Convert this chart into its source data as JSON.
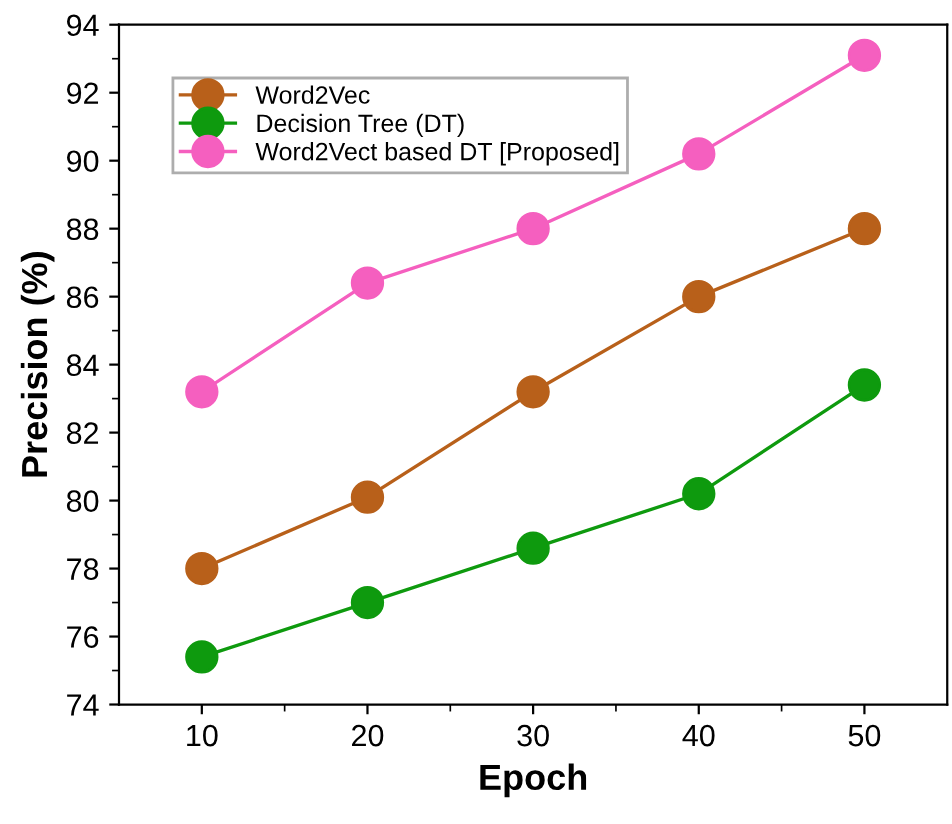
{
  "chart_data": {
    "type": "line",
    "xlabel": "Epoch",
    "ylabel": "Precision (%)",
    "x": [
      10,
      20,
      30,
      40,
      50
    ],
    "series": [
      {
        "name": "Word2Vec",
        "color": "#b8601a",
        "values": [
          78.0,
          80.1,
          83.2,
          86.0,
          88.0
        ]
      },
      {
        "name": "Decision Tree (DT)",
        "color": "#0e9a0e",
        "values": [
          75.4,
          77.0,
          78.6,
          80.2,
          83.4
        ]
      },
      {
        "name": "Word2Vect based DT [Proposed]",
        "color": "#f55fbf",
        "values": [
          83.2,
          86.4,
          88.0,
          90.2,
          93.1
        ]
      }
    ],
    "xlim": [
      5,
      55
    ],
    "xticks": [
      10,
      20,
      30,
      40,
      50
    ],
    "ylim": [
      74,
      94
    ],
    "yticks": [
      74,
      76,
      78,
      80,
      82,
      84,
      86,
      88,
      90,
      92,
      94
    ],
    "marker": "circle",
    "line_style": "solid",
    "legend": "top left",
    "grid": false
  }
}
